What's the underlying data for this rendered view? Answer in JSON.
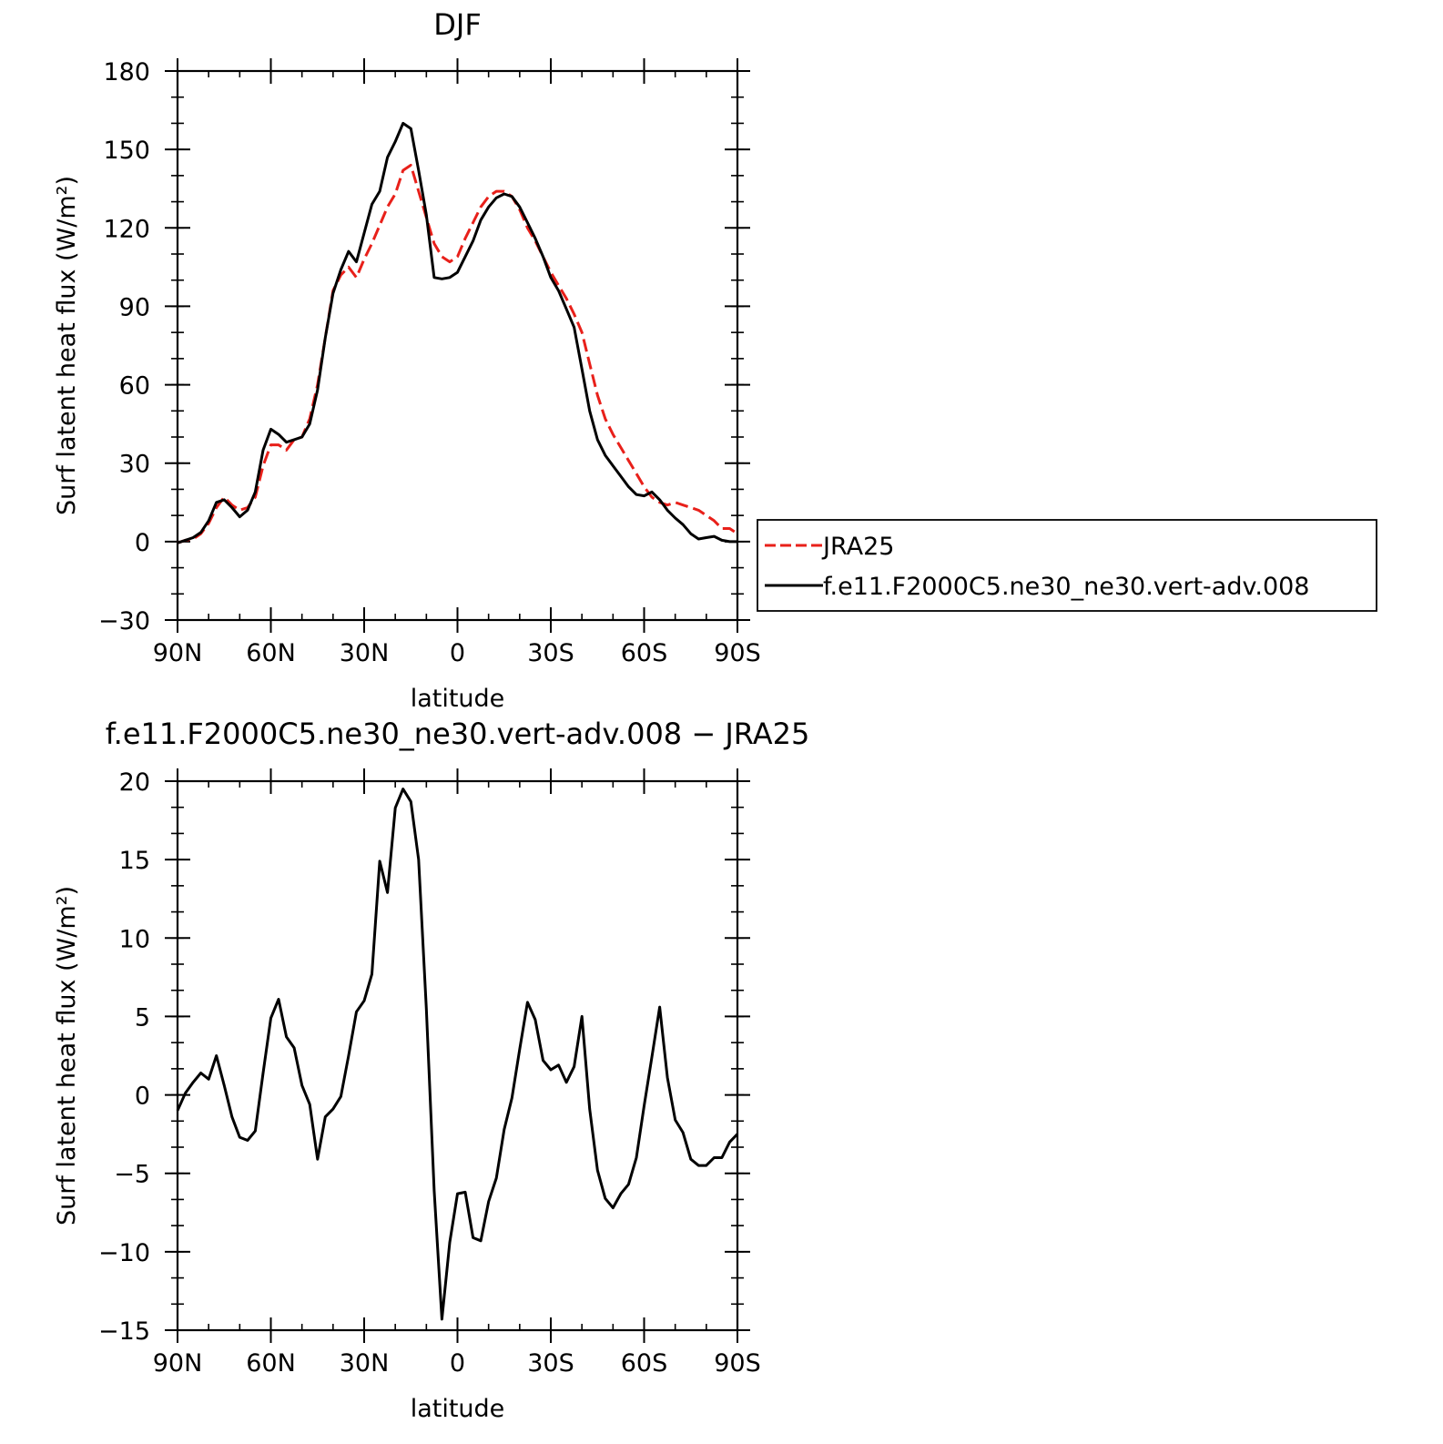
{
  "chart_data": [
    {
      "type": "line",
      "title": "DJF",
      "xlabel": "latitude",
      "ylabel": "Surf latent heat flux (W/m²)",
      "xlim": [
        90,
        -90
      ],
      "ylim": [
        -30,
        180
      ],
      "yticks": [
        -30,
        0,
        30,
        60,
        90,
        120,
        150,
        180
      ],
      "xticks": [
        {
          "value": 90,
          "label": "90N"
        },
        {
          "value": 60,
          "label": "60N"
        },
        {
          "value": 30,
          "label": "30N"
        },
        {
          "value": 0,
          "label": "0"
        },
        {
          "value": -30,
          "label": "30S"
        },
        {
          "value": -60,
          "label": "60S"
        },
        {
          "value": -90,
          "label": "90S"
        }
      ],
      "legend": {
        "placement": "right"
      },
      "series": [
        {
          "name": "JRA25",
          "color": "#e8201a",
          "dash": true,
          "x": [
            90,
            87.5,
            85,
            82.5,
            80,
            77.5,
            75,
            72.5,
            70,
            67.5,
            65,
            62.5,
            60,
            57.5,
            55,
            52.5,
            50,
            47.5,
            45,
            42.5,
            40,
            37.5,
            35,
            32.5,
            30,
            27.5,
            25,
            22.5,
            20,
            17.5,
            15,
            12.5,
            10,
            7.5,
            5,
            2.5,
            0,
            -2.5,
            -5,
            -7.5,
            -10,
            -12.5,
            -15,
            -17.5,
            -20,
            -22.5,
            -25,
            -27.5,
            -30,
            -32.5,
            -35,
            -37.5,
            -40,
            -42.5,
            -45,
            -47.5,
            -50,
            -52.5,
            -55,
            -57.5,
            -60,
            -62.5,
            -65,
            -67.5,
            -70,
            -72.5,
            -75,
            -77.5,
            -80,
            -82.5,
            -85,
            -87.5,
            -90
          ],
          "y": [
            -0.5,
            0.5,
            1,
            3,
            7,
            13,
            17,
            14,
            12,
            13,
            17,
            29,
            37,
            37,
            35,
            39,
            40,
            47,
            60,
            78,
            96,
            102,
            105,
            101,
            108,
            114,
            121,
            128,
            133,
            142,
            144,
            134,
            124,
            114,
            109,
            107,
            109,
            116,
            122,
            128,
            132,
            134,
            134,
            132,
            127,
            120,
            115,
            109,
            103,
            98,
            93,
            87,
            80,
            68,
            56,
            47,
            41,
            36,
            31,
            26,
            21,
            17,
            15,
            14,
            15,
            14,
            13,
            12,
            10,
            8,
            5,
            5,
            3
          ]
        },
        {
          "name": "f.e11.F2000C5.ne30_ne30.vert-adv.008",
          "color": "#000000",
          "dash": false,
          "x": [
            90,
            87.5,
            85,
            82.5,
            80,
            77.5,
            75,
            72.5,
            70,
            67.5,
            65,
            62.5,
            60,
            57.5,
            55,
            52.5,
            50,
            47.5,
            45,
            42.5,
            40,
            37.5,
            35,
            32.5,
            30,
            27.5,
            25,
            22.5,
            20,
            17.5,
            15,
            12.5,
            10,
            7.5,
            5,
            2.5,
            0,
            -2.5,
            -5,
            -7.5,
            -10,
            -12.5,
            -15,
            -17.5,
            -20,
            -22.5,
            -25,
            -27.5,
            -30,
            -32.5,
            -35,
            -37.5,
            -40,
            -42.5,
            -45,
            -47.5,
            -50,
            -52.5,
            -55,
            -57.5,
            -60,
            -62.5,
            -65,
            -67.5,
            -70,
            -72.5,
            -75,
            -77.5,
            -80,
            -82.5,
            -85,
            -87.5,
            -90
          ],
          "y": [
            -0.5,
            0.5,
            1.5,
            3.5,
            8,
            15,
            16,
            13,
            9.5,
            12,
            19,
            35,
            43,
            41,
            38,
            39,
            40,
            45,
            58,
            78,
            95,
            104,
            111,
            107,
            118,
            129,
            134,
            147,
            153,
            160,
            158,
            142,
            125,
            101,
            100.5,
            101,
            103,
            109,
            115,
            123,
            128,
            131.5,
            133,
            132,
            128,
            122,
            116,
            109,
            101,
            96,
            89,
            82,
            66,
            50,
            39,
            33,
            29,
            25,
            21,
            18,
            17.5,
            19,
            16,
            12,
            9,
            6.5,
            3,
            1,
            1.5,
            2,
            0.5,
            0,
            0
          ]
        }
      ]
    },
    {
      "type": "line",
      "title": "f.e11.F2000C5.ne30_ne30.vert-adv.008 − JRA25",
      "xlabel": "latitude",
      "ylabel": "Surf latent heat flux (W/m²)",
      "xlim": [
        90,
        -90
      ],
      "ylim": [
        -15,
        20
      ],
      "yticks": [
        -15,
        -10,
        -5,
        0,
        5,
        10,
        15,
        20
      ],
      "xticks": [
        {
          "value": 90,
          "label": "90N"
        },
        {
          "value": 60,
          "label": "60N"
        },
        {
          "value": 30,
          "label": "30N"
        },
        {
          "value": 0,
          "label": "0"
        },
        {
          "value": -30,
          "label": "30S"
        },
        {
          "value": -60,
          "label": "60S"
        },
        {
          "value": -90,
          "label": "90S"
        }
      ],
      "series": [
        {
          "color": "#000000",
          "dash": false,
          "x": [
            90,
            87.5,
            85,
            82.5,
            80,
            77.5,
            75,
            72.5,
            70,
            67.5,
            65,
            62.5,
            60,
            57.5,
            55,
            52.5,
            50,
            47.5,
            45,
            42.5,
            40,
            37.5,
            35,
            32.5,
            30,
            27.5,
            25,
            22.5,
            20,
            17.5,
            15,
            12.5,
            10,
            7.5,
            5,
            2.5,
            0,
            -2.5,
            -5,
            -7.5,
            -10,
            -12.5,
            -15,
            -17.5,
            -20,
            -22.5,
            -25,
            -27.5,
            -30,
            -32.5,
            -35,
            -37.5,
            -40,
            -42.5,
            -45,
            -47.5,
            -50,
            -52.5,
            -55,
            -57.5,
            -60,
            -62.5,
            -65,
            -67.5,
            -70,
            -72.5,
            -75,
            -77.5,
            -80,
            -82.5,
            -85,
            -87.5,
            -90
          ],
          "y": [
            -1,
            0.1,
            0.8,
            1.4,
            1,
            2.5,
            0.6,
            -1.4,
            -2.7,
            -2.9,
            -2.3,
            1.4,
            4.9,
            6.1,
            3.7,
            3,
            0.6,
            -0.6,
            -4.1,
            -1.4,
            -0.9,
            -0.1,
            2.5,
            5.3,
            6,
            7.7,
            14.9,
            12.9,
            18.3,
            19.5,
            18.7,
            15,
            5.5,
            -6.1,
            -14.3,
            -9.4,
            -6.3,
            -6.2,
            -9.1,
            -9.3,
            -6.8,
            -5.3,
            -2.2,
            -0.2,
            2.9,
            5.9,
            4.8,
            2.2,
            1.6,
            1.9,
            0.8,
            1.8,
            5,
            -0.9,
            -4.8,
            -6.6,
            -7.2,
            -6.3,
            -5.7,
            -4,
            -0.7,
            2.4,
            5.6,
            1.1,
            -1.6,
            -2.4,
            -4.1,
            -4.5,
            -4.5,
            -4,
            -4,
            -3,
            -2.5
          ]
        }
      ]
    }
  ]
}
